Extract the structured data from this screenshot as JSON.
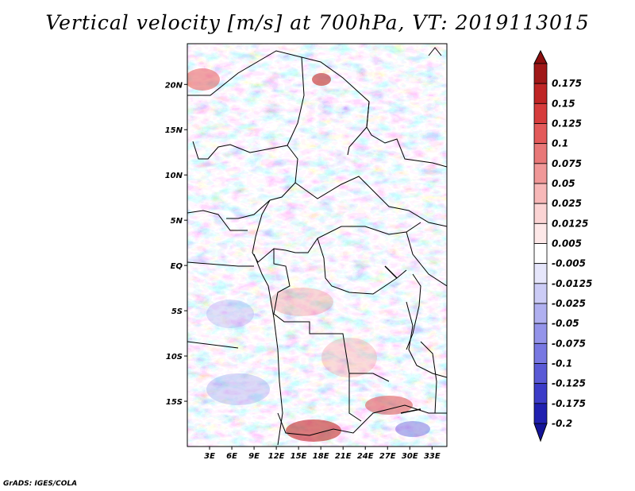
{
  "title": "Vertical velocity [m/s] at 700hPa, VT: 2019113015",
  "credit": "GrADS: IGES/COLA",
  "map": {
    "lon_range": [
      0,
      35
    ],
    "lat_range": [
      -20,
      24.5
    ],
    "lat_ticks": [
      {
        "value": 20,
        "label": "20N"
      },
      {
        "value": 15,
        "label": "15N"
      },
      {
        "value": 10,
        "label": "10N"
      },
      {
        "value": 5,
        "label": "5N"
      },
      {
        "value": 0,
        "label": "EQ"
      },
      {
        "value": -5,
        "label": "5S"
      },
      {
        "value": -10,
        "label": "10S"
      },
      {
        "value": -15,
        "label": "15S"
      }
    ],
    "lon_ticks": [
      {
        "value": 3,
        "label": "3E"
      },
      {
        "value": 6,
        "label": "6E"
      },
      {
        "value": 9,
        "label": "9E"
      },
      {
        "value": 12,
        "label": "12E"
      },
      {
        "value": 15,
        "label": "15E"
      },
      {
        "value": 18,
        "label": "18E"
      },
      {
        "value": 21,
        "label": "21E"
      },
      {
        "value": 24,
        "label": "24E"
      },
      {
        "value": 27,
        "label": "27E"
      },
      {
        "value": 30,
        "label": "30E"
      },
      {
        "value": 33,
        "label": "33E"
      }
    ]
  },
  "colorbar": {
    "levels": [
      {
        "label": "0.175",
        "color": "#a01818"
      },
      {
        "label": "0.15",
        "color": "#bf2525"
      },
      {
        "label": "0.125",
        "color": "#d63c3c"
      },
      {
        "label": "0.1",
        "color": "#e35a5a"
      },
      {
        "label": "0.075",
        "color": "#e87878"
      },
      {
        "label": "0.05",
        "color": "#f09898"
      },
      {
        "label": "0.025",
        "color": "#f7b8b8"
      },
      {
        "label": "0.0125",
        "color": "#fbd4d4"
      },
      {
        "label": "0.005",
        "color": "#fde8e8"
      },
      {
        "label": "-0.005",
        "color": "#ffffff"
      },
      {
        "label": "-0.0125",
        "color": "#e6e6fb"
      },
      {
        "label": "-0.025",
        "color": "#ccccf6"
      },
      {
        "label": "-0.05",
        "color": "#b0b0f0"
      },
      {
        "label": "-0.075",
        "color": "#9494ea"
      },
      {
        "label": "-0.1",
        "color": "#7878e2"
      },
      {
        "label": "-0.125",
        "color": "#5a5ad6"
      },
      {
        "label": "-0.175",
        "color": "#3c3cc8"
      },
      {
        "label": "-0.2",
        "color": "#2020b0"
      }
    ],
    "top_color": "#8c0f0f",
    "bottom_color": "#141498"
  }
}
